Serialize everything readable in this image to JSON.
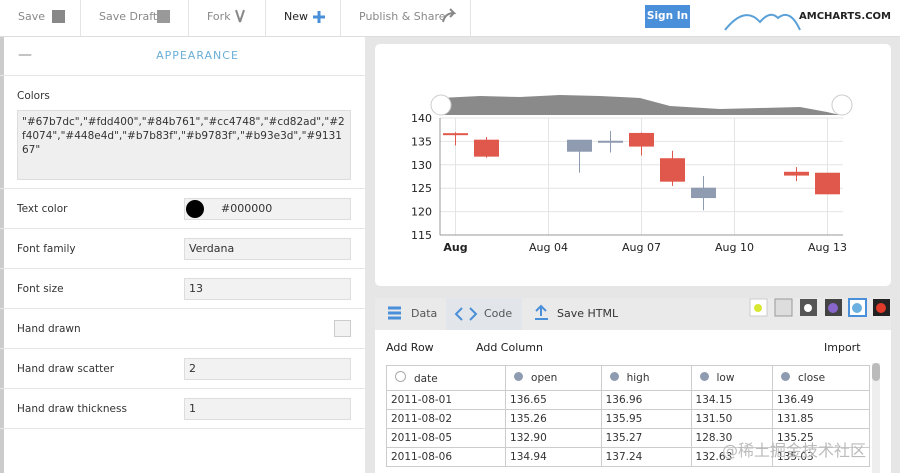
{
  "toolbar": {
    "buttons": [
      "Save",
      "Save Draft",
      "Fork",
      "New",
      "Publish & Share"
    ],
    "sign_in": "Sign In",
    "logo": "AMCHARTS.COM"
  },
  "appearance": {
    "title": "APPEARANCE",
    "settings": [
      {
        "label": "Colors",
        "value": "\"#67b7dc\",\"#fdd400\",\"#84b761\",\"#cc4748\",\"#cd82ad\",\"#2f4074\",\"#448e4d\",\"#b7b83f\",\"#b9783f\",\"#b93e3d\",\"#913167\""
      },
      {
        "label": "Text color",
        "value": "#000000"
      },
      {
        "label": "Font family",
        "value": "Verdana"
      },
      {
        "label": "Font size",
        "value": "13"
      },
      {
        "label": "Hand drawn"
      },
      {
        "label": "Hand draw scatter",
        "value": "2"
      },
      {
        "label": "Hand draw thickness",
        "value": "1"
      }
    ]
  },
  "chart_data": {
    "type": "candlestick",
    "x": [
      1,
      2,
      5,
      6,
      7,
      8,
      9,
      12,
      13
    ],
    "open": [
      136.65,
      135.26,
      132.9,
      134.94,
      136.7,
      131.3,
      123.0,
      128.4,
      128.2
    ],
    "high": [
      136.96,
      135.95,
      135.27,
      137.24,
      136.9,
      133.0,
      127.6,
      129.5,
      128.2
    ],
    "low": [
      134.15,
      131.5,
      128.3,
      132.63,
      132.0,
      125.5,
      120.3,
      126.5,
      123.8
    ],
    "close": [
      136.49,
      131.85,
      135.25,
      135.03,
      134.0,
      126.5,
      125.0,
      127.8,
      123.8
    ],
    "up_color": "#8e9bb0",
    "down_color": "#e0584b",
    "xlim": [
      0.5,
      13.5
    ],
    "xticks": [
      {
        "value": 1,
        "label": "Aug"
      },
      {
        "value": 4,
        "label": "Aug 04"
      },
      {
        "value": 7,
        "label": "Aug 07"
      },
      {
        "value": 10,
        "label": "Aug 10"
      },
      {
        "value": 13,
        "label": "Aug 13"
      }
    ],
    "ylim": [
      115,
      140
    ],
    "yticks": [
      115,
      120,
      125,
      130,
      135,
      140
    ],
    "grid": true
  },
  "tabs": [
    "Data",
    "Code",
    "Save HTML"
  ],
  "data_toolbar": {
    "add_row": "Add Row",
    "add_column": "Add Column",
    "import": "Import"
  },
  "table": {
    "columns": [
      "date",
      "open",
      "high",
      "low",
      "close"
    ],
    "rows": [
      [
        "2011-08-01",
        "136.65",
        "136.96",
        "134.15",
        "136.49"
      ],
      [
        "2011-08-02",
        "135.26",
        "135.95",
        "131.50",
        "131.85"
      ],
      [
        "2011-08-05",
        "132.90",
        "135.27",
        "128.30",
        "135.25"
      ],
      [
        "2011-08-06",
        "134.94",
        "137.24",
        "132.63",
        "135.03"
      ]
    ]
  },
  "watermark": "@稀土掘金技术社区"
}
